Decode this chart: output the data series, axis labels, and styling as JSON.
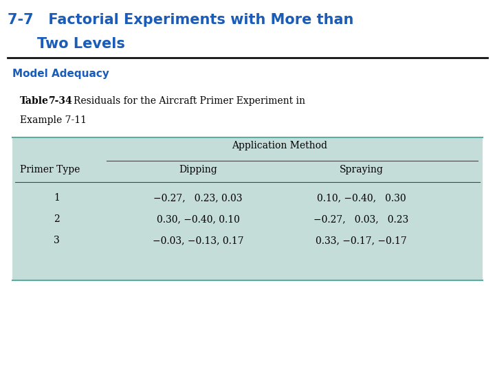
{
  "title_line1": "7-7   Factorial Experiments with More than",
  "title_line2": "Two Levels",
  "title_color": "#1A5CB8",
  "subtitle": "Model Adequacy",
  "subtitle_color": "#1A5CB8",
  "col_header_top": "Application Method",
  "col_header_left": "Primer Type",
  "col_header_dipping": "Dipping",
  "col_header_spraying": "Spraying",
  "rows": [
    {
      "primer": "1",
      "dipping": "−0.27,   0.23, 0.03",
      "spraying": "0.10, −0.40,   0.30"
    },
    {
      "primer": "2",
      "dipping": "0.30, −0.40, 0.10",
      "spraying": "−0.27,   0.03,   0.23"
    },
    {
      "primer": "3",
      "dipping": "−0.03, −0.13, 0.17",
      "spraying": "0.33, −0.17, −0.17"
    }
  ],
  "table_bg_color": "#C5DDD9",
  "bg_color": "#FFFFFF",
  "border_color": "#5AADA0",
  "header_line_color": "#444444",
  "text_color": "#000000",
  "title_fontsize": 15,
  "subtitle_fontsize": 11,
  "caption_fontsize": 10,
  "table_fontsize": 10
}
